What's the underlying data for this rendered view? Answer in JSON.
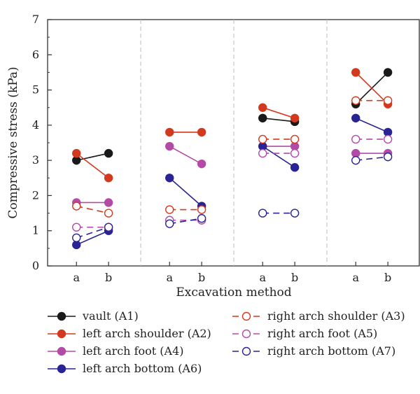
{
  "chart_data": {
    "type": "line",
    "xlabel": "Excavation method",
    "ylabel": "Compressive stress (kPa)",
    "ylim": [
      0,
      7
    ],
    "yticks": [
      "0",
      "1",
      "2",
      "3",
      "4",
      "5",
      "6",
      "7"
    ],
    "groups": 4,
    "categories": [
      "a",
      "b"
    ],
    "grid": false,
    "group_separators": "dashed vertical lines",
    "legend_position": "bottom",
    "series": [
      {
        "name": "vault (A1)",
        "color": "#1a1a1a",
        "marker": "filled",
        "dash": false,
        "values": [
          [
            3.0,
            3.2
          ],
          [
            null,
            null
          ],
          [
            4.2,
            4.1
          ],
          [
            4.6,
            5.5
          ]
        ]
      },
      {
        "name": "left arch shoulder (A2)",
        "color": "#d2391e",
        "marker": "filled",
        "dash": false,
        "values": [
          [
            3.2,
            2.5
          ],
          [
            3.8,
            3.8
          ],
          [
            4.5,
            4.2
          ],
          [
            5.5,
            4.6
          ]
        ]
      },
      {
        "name": "left arch foot (A4)",
        "color": "#b34aa8",
        "marker": "filled",
        "dash": false,
        "values": [
          [
            1.8,
            1.8
          ],
          [
            3.4,
            2.9
          ],
          [
            3.4,
            3.4
          ],
          [
            3.2,
            3.2
          ]
        ]
      },
      {
        "name": "left arch bottom (A6)",
        "color": "#2a2394",
        "marker": "filled",
        "dash": false,
        "values": [
          [
            0.6,
            1.0
          ],
          [
            2.5,
            1.7
          ],
          [
            3.4,
            2.8
          ],
          [
            4.2,
            3.8
          ]
        ]
      },
      {
        "name": "right arch shoulder (A3)",
        "color": "#d2391e",
        "marker": "open",
        "dash": true,
        "values": [
          [
            1.7,
            1.5
          ],
          [
            1.6,
            1.6
          ],
          [
            3.6,
            3.6
          ],
          [
            4.7,
            4.7
          ]
        ]
      },
      {
        "name": "right arch foot (A5)",
        "color": "#b34aa8",
        "marker": "open",
        "dash": true,
        "values": [
          [
            1.1,
            1.1
          ],
          [
            1.3,
            1.3
          ],
          [
            3.2,
            3.2
          ],
          [
            3.6,
            3.6
          ]
        ]
      },
      {
        "name": "right arch bottom (A7)",
        "color": "#2a2394",
        "marker": "open",
        "dash": true,
        "values": [
          [
            0.8,
            1.1
          ],
          [
            1.2,
            1.35
          ],
          [
            1.5,
            1.5
          ],
          [
            3.0,
            3.1
          ]
        ]
      }
    ]
  }
}
